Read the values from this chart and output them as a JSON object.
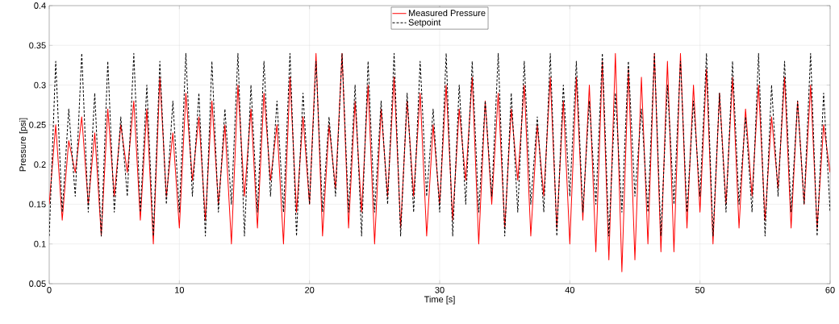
{
  "chart_data": {
    "type": "line",
    "xlabel": "Time [s]",
    "ylabel": "Pressure [psi]",
    "xlim": [
      0,
      60
    ],
    "ylim": [
      0.05,
      0.4
    ],
    "xticks": [
      0,
      10,
      20,
      30,
      40,
      50,
      60
    ],
    "yticks": [
      0.05,
      0.1,
      0.15,
      0.2,
      0.25,
      0.3,
      0.35,
      0.4
    ],
    "grid": true,
    "legend": "top",
    "marker": "none",
    "x": [
      0,
      0.5,
      1,
      1.5,
      2,
      2.5,
      3,
      3.5,
      4,
      4.5,
      5,
      5.5,
      6,
      6.5,
      7,
      7.5,
      8,
      8.5,
      9,
      9.5,
      10,
      10.5,
      11,
      11.5,
      12,
      12.5,
      13,
      13.5,
      14,
      14.5,
      15,
      15.5,
      16,
      16.5,
      17,
      17.5,
      18,
      18.5,
      19,
      19.5,
      20,
      20.5,
      21,
      21.5,
      22,
      22.5,
      23,
      23.5,
      24,
      24.5,
      25,
      25.5,
      26,
      26.5,
      27,
      27.5,
      28,
      28.5,
      29,
      29.5,
      30,
      30.5,
      31,
      31.5,
      32,
      32.5,
      33,
      33.5,
      34,
      34.5,
      35,
      35.5,
      36,
      36.5,
      37,
      37.5,
      38,
      38.5,
      39,
      39.5,
      40,
      40.5,
      41,
      41.5,
      42,
      42.5,
      43,
      43.5,
      44,
      44.5,
      45,
      45.5,
      46,
      46.5,
      47,
      47.5,
      48,
      48.5,
      49,
      49.5,
      50,
      50.5,
      51,
      51.5,
      52,
      52.5,
      53,
      53.5,
      54,
      54.5,
      55,
      55.5,
      56,
      56.5,
      57,
      57.5,
      58,
      58.5,
      59,
      59.5,
      60
    ],
    "series": [
      {
        "name": "Measured Pressure",
        "color": "#ff0000",
        "line_style": "solid",
        "values": [
          0.15,
          0.25,
          0.13,
          0.23,
          0.19,
          0.26,
          0.15,
          0.24,
          0.11,
          0.27,
          0.16,
          0.25,
          0.19,
          0.28,
          0.13,
          0.27,
          0.1,
          0.31,
          0.16,
          0.24,
          0.12,
          0.29,
          0.18,
          0.26,
          0.13,
          0.28,
          0.15,
          0.25,
          0.1,
          0.3,
          0.16,
          0.27,
          0.12,
          0.29,
          0.18,
          0.25,
          0.1,
          0.31,
          0.14,
          0.26,
          0.15,
          0.34,
          0.11,
          0.25,
          0.17,
          0.34,
          0.12,
          0.28,
          0.14,
          0.3,
          0.1,
          0.27,
          0.16,
          0.31,
          0.12,
          0.28,
          0.16,
          0.29,
          0.11,
          0.25,
          0.15,
          0.3,
          0.13,
          0.27,
          0.18,
          0.31,
          0.1,
          0.28,
          0.15,
          0.29,
          0.12,
          0.27,
          0.18,
          0.3,
          0.11,
          0.25,
          0.16,
          0.31,
          0.12,
          0.28,
          0.1,
          0.31,
          0.13,
          0.3,
          0.09,
          0.33,
          0.08,
          0.34,
          0.065,
          0.32,
          0.08,
          0.31,
          0.1,
          0.34,
          0.09,
          0.33,
          0.09,
          0.34,
          0.12,
          0.3,
          0.14,
          0.32,
          0.1,
          0.29,
          0.15,
          0.31,
          0.12,
          0.27,
          0.16,
          0.3,
          0.13,
          0.26,
          0.17,
          0.31,
          0.12,
          0.28,
          0.15,
          0.3,
          0.12,
          0.25,
          0.19
        ]
      },
      {
        "name": "Setpoint",
        "color": "#000000",
        "line_style": "dashed",
        "values": [
          0.11,
          0.33,
          0.14,
          0.27,
          0.16,
          0.34,
          0.14,
          0.29,
          0.11,
          0.33,
          0.14,
          0.26,
          0.16,
          0.34,
          0.14,
          0.3,
          0.11,
          0.33,
          0.15,
          0.28,
          0.14,
          0.34,
          0.16,
          0.29,
          0.11,
          0.33,
          0.14,
          0.27,
          0.15,
          0.34,
          0.11,
          0.3,
          0.14,
          0.33,
          0.16,
          0.28,
          0.14,
          0.34,
          0.11,
          0.29,
          0.15,
          0.33,
          0.14,
          0.26,
          0.16,
          0.34,
          0.14,
          0.3,
          0.11,
          0.33,
          0.14,
          0.28,
          0.15,
          0.34,
          0.11,
          0.29,
          0.14,
          0.33,
          0.16,
          0.27,
          0.14,
          0.34,
          0.11,
          0.3,
          0.15,
          0.33,
          0.14,
          0.28,
          0.16,
          0.34,
          0.11,
          0.29,
          0.14,
          0.33,
          0.15,
          0.26,
          0.14,
          0.34,
          0.11,
          0.3,
          0.16,
          0.33,
          0.14,
          0.28,
          0.15,
          0.34,
          0.11,
          0.29,
          0.14,
          0.33,
          0.16,
          0.27,
          0.14,
          0.34,
          0.11,
          0.3,
          0.15,
          0.33,
          0.14,
          0.28,
          0.16,
          0.34,
          0.11,
          0.29,
          0.14,
          0.33,
          0.15,
          0.26,
          0.14,
          0.34,
          0.11,
          0.3,
          0.16,
          0.33,
          0.14,
          0.28,
          0.15,
          0.34,
          0.11,
          0.29,
          0.14
        ]
      }
    ]
  }
}
